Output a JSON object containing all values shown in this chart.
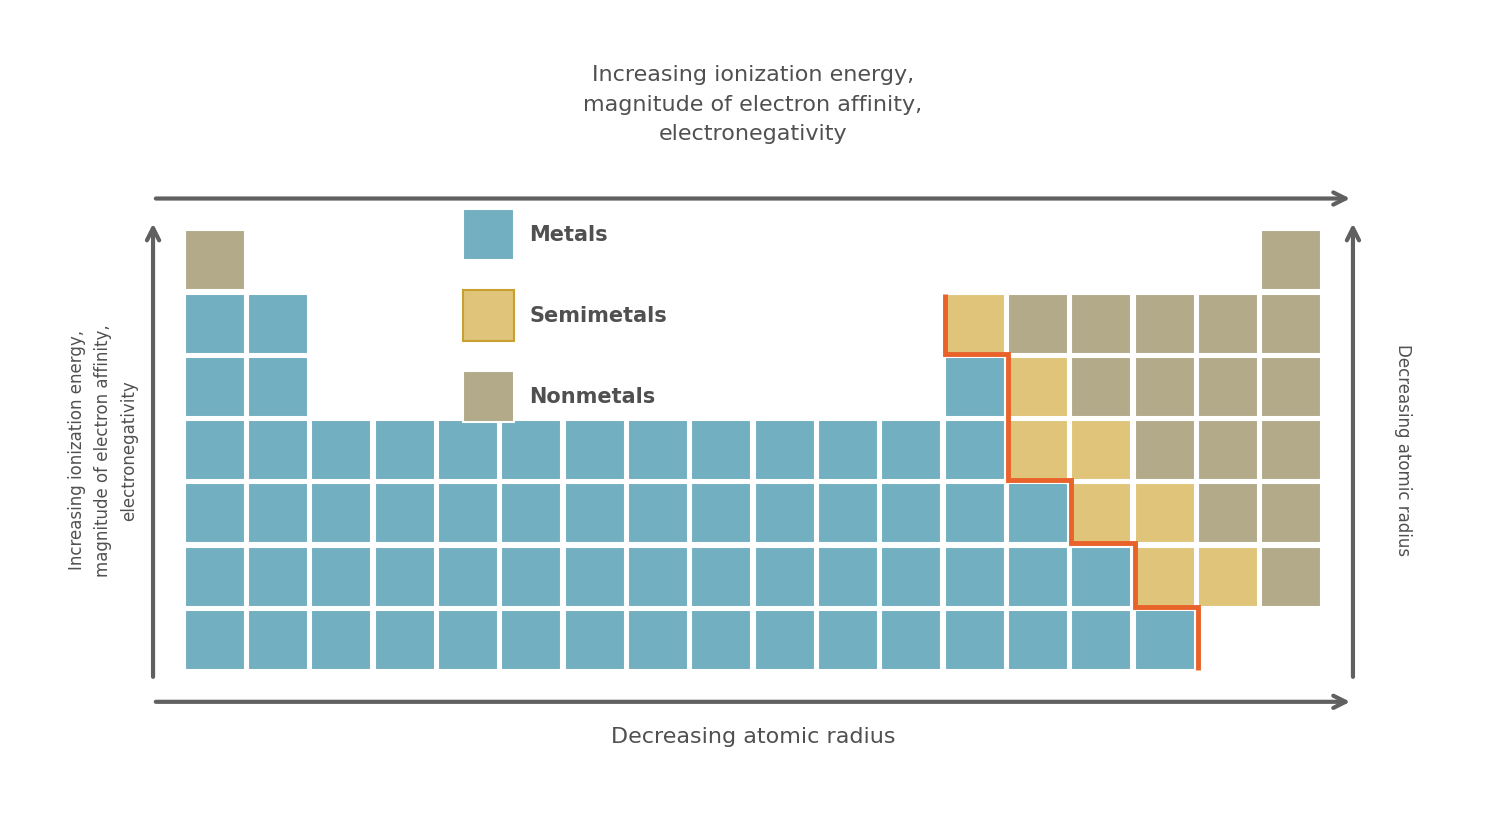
{
  "title_top": "Increasing ionization energy,\nmagnitude of electron affinity,\nelectronegativity",
  "label_bottom": "Decreasing atomic radius",
  "label_left": "Increasing ionization energy,\nmagnitude of electron affinity,\nelectronegativity",
  "label_right": "Decreasing atomic radius",
  "metal_color": "#72afc0",
  "semimetal_color": "#dfc47a",
  "nonmetal_color": "#b3aa8a",
  "border_color": "#ffffff",
  "staircase_color": "#e8622a",
  "arrow_color": "#606060",
  "background": "#ffffff",
  "legend_metals": "Metals",
  "legend_semimetals": "Semimetals",
  "legend_nonmetals": "Nonmetals"
}
